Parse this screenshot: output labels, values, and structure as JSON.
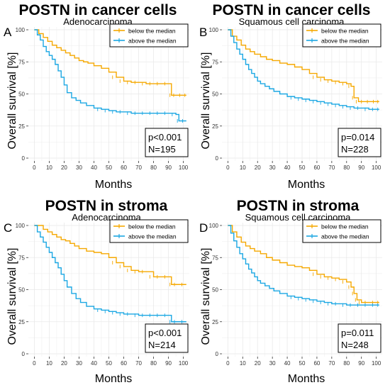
{
  "colors": {
    "below": "#f5a800",
    "above": "#1ba7e3",
    "grid": "#e9e9e9",
    "text": "#000000"
  },
  "legend_labels": [
    "below the median",
    "above the median"
  ],
  "chart_data": [
    {
      "panel_letter": "A",
      "type": "line",
      "title": "POSTN in cancer cells",
      "subtitle": "Adenocarcinoma",
      "xlabel": "Months",
      "ylabel": "Overall survival [%]",
      "xlim": [
        0,
        100
      ],
      "ylim": [
        0,
        100
      ],
      "xticks": [
        "0",
        "10",
        "20",
        "30",
        "40",
        "50",
        "60",
        "70",
        "80",
        "90",
        "100"
      ],
      "yticks": [
        "0",
        "25",
        "50",
        "75",
        "100"
      ],
      "grid": true,
      "legend_position": "top-right",
      "annotation": {
        "p": "p<0.001",
        "n": "N=195"
      },
      "series": [
        {
          "name": "below the median",
          "color_key": "below",
          "x": [
            0,
            3,
            6,
            9,
            12,
            15,
            18,
            21,
            24,
            27,
            30,
            33,
            36,
            40,
            45,
            50,
            55,
            60,
            65,
            70,
            75,
            80,
            85,
            90,
            92,
            95,
            100,
            102
          ],
          "y": [
            100,
            97,
            94,
            91,
            88,
            86,
            84,
            82,
            80,
            78,
            76,
            75,
            74,
            72,
            70,
            67,
            63,
            60,
            59,
            59,
            58,
            58,
            58,
            58,
            49,
            49,
            49,
            49
          ]
        },
        {
          "name": "above the median",
          "color_key": "above",
          "x": [
            0,
            2,
            4,
            6,
            8,
            10,
            12,
            14,
            16,
            18,
            20,
            22,
            25,
            28,
            31,
            35,
            40,
            45,
            50,
            55,
            60,
            65,
            70,
            75,
            80,
            85,
            90,
            95,
            97,
            102
          ],
          "y": [
            100,
            96,
            92,
            87,
            83,
            80,
            77,
            73,
            68,
            63,
            57,
            51,
            47,
            45,
            43,
            41,
            39,
            38,
            37,
            36,
            36,
            35,
            35,
            35,
            35,
            35,
            35,
            34,
            29,
            29
          ]
        }
      ]
    },
    {
      "panel_letter": "B",
      "type": "line",
      "title": "POSTN in cancer cells",
      "subtitle": "Squamous cell carcinoma",
      "xlabel": "Months",
      "ylabel": "Overall survival [%]",
      "xlim": [
        0,
        100
      ],
      "ylim": [
        0,
        100
      ],
      "xticks": [
        "0",
        "10",
        "20",
        "30",
        "40",
        "50",
        "60",
        "70",
        "80",
        "90",
        "100"
      ],
      "yticks": [
        "0",
        "25",
        "50",
        "75",
        "100"
      ],
      "grid": true,
      "legend_position": "top-right",
      "annotation": {
        "p": "p=0.014",
        "n": "N=228"
      },
      "series": [
        {
          "name": "below the median",
          "color_key": "below",
          "x": [
            0,
            3,
            6,
            9,
            12,
            15,
            18,
            22,
            26,
            30,
            35,
            40,
            45,
            50,
            55,
            60,
            65,
            70,
            75,
            80,
            83,
            85,
            88,
            92,
            96,
            100,
            102
          ],
          "y": [
            100,
            95,
            92,
            88,
            85,
            83,
            81,
            79,
            77,
            76,
            74,
            73,
            71,
            69,
            66,
            63,
            61,
            60,
            59,
            58,
            56,
            47,
            44,
            44,
            44,
            44,
            44
          ]
        },
        {
          "name": "above the median",
          "color_key": "above",
          "x": [
            0,
            2,
            4,
            6,
            8,
            10,
            12,
            14,
            16,
            18,
            20,
            22,
            25,
            28,
            31,
            35,
            40,
            45,
            50,
            55,
            60,
            65,
            70,
            75,
            80,
            85,
            90,
            95,
            100,
            102
          ],
          "y": [
            100,
            95,
            90,
            85,
            81,
            77,
            73,
            69,
            66,
            63,
            60,
            58,
            56,
            54,
            52,
            50,
            48,
            47,
            46,
            45,
            44,
            43,
            42,
            41,
            40,
            39,
            39,
            38,
            38,
            38
          ]
        }
      ]
    },
    {
      "panel_letter": "C",
      "type": "line",
      "title": "POSTN in stroma",
      "subtitle": "Adenocarcinoma",
      "xlabel": "Months",
      "ylabel": "Overall survival [%]",
      "xlim": [
        0,
        100
      ],
      "ylim": [
        0,
        100
      ],
      "xticks": [
        "0",
        "10",
        "20",
        "30",
        "40",
        "50",
        "60",
        "70",
        "80",
        "90",
        "100"
      ],
      "yticks": [
        "0",
        "25",
        "50",
        "75",
        "100"
      ],
      "grid": true,
      "legend_position": "top-right",
      "annotation": {
        "p": "p<0.001",
        "n": "N=214"
      },
      "series": [
        {
          "name": "below the median",
          "color_key": "below",
          "x": [
            0,
            3,
            6,
            9,
            12,
            15,
            18,
            21,
            24,
            27,
            30,
            35,
            40,
            45,
            50,
            55,
            60,
            65,
            70,
            75,
            80,
            85,
            90,
            92,
            96,
            102
          ],
          "y": [
            100,
            100,
            97,
            95,
            93,
            91,
            89,
            88,
            86,
            84,
            82,
            80,
            79,
            78,
            75,
            71,
            68,
            65,
            64,
            64,
            60,
            60,
            60,
            54,
            54,
            54
          ]
        },
        {
          "name": "above the median",
          "color_key": "above",
          "x": [
            0,
            2,
            4,
            6,
            8,
            10,
            12,
            14,
            16,
            18,
            20,
            22,
            25,
            28,
            31,
            35,
            40,
            45,
            50,
            55,
            60,
            65,
            70,
            75,
            80,
            85,
            90,
            92,
            96,
            102
          ],
          "y": [
            100,
            95,
            91,
            87,
            83,
            79,
            75,
            71,
            67,
            62,
            57,
            52,
            47,
            43,
            40,
            37,
            35,
            34,
            33,
            32,
            31,
            31,
            30,
            30,
            30,
            30,
            30,
            25,
            25,
            25
          ]
        }
      ]
    },
    {
      "panel_letter": "D",
      "type": "line",
      "title": "POSTN in stroma",
      "subtitle": "Squamous cell carcinoma",
      "xlabel": "Months",
      "ylabel": "Overall survival [%]",
      "xlim": [
        0,
        100
      ],
      "ylim": [
        0,
        100
      ],
      "xticks": [
        "0",
        "10",
        "20",
        "30",
        "40",
        "50",
        "60",
        "70",
        "80",
        "90",
        "100"
      ],
      "yticks": [
        "0",
        "25",
        "50",
        "75",
        "100"
      ],
      "grid": true,
      "legend_position": "top-right",
      "annotation": {
        "p": "p=0.011",
        "n": "N=248"
      },
      "series": [
        {
          "name": "below the median",
          "color_key": "below",
          "x": [
            0,
            3,
            6,
            9,
            12,
            15,
            18,
            22,
            26,
            30,
            35,
            40,
            45,
            50,
            55,
            60,
            65,
            70,
            75,
            80,
            83,
            85,
            87,
            90,
            95,
            100,
            102
          ],
          "y": [
            100,
            95,
            91,
            87,
            84,
            82,
            80,
            78,
            75,
            73,
            71,
            69,
            68,
            67,
            65,
            62,
            60,
            59,
            58,
            56,
            52,
            47,
            42,
            40,
            40,
            40,
            40
          ]
        },
        {
          "name": "above the median",
          "color_key": "above",
          "x": [
            0,
            2,
            4,
            6,
            8,
            10,
            12,
            14,
            16,
            18,
            20,
            22,
            25,
            28,
            31,
            35,
            40,
            45,
            50,
            55,
            60,
            65,
            70,
            75,
            80,
            85,
            90,
            95,
            100,
            102
          ],
          "y": [
            100,
            94,
            88,
            83,
            78,
            74,
            70,
            66,
            63,
            60,
            57,
            55,
            53,
            51,
            49,
            47,
            45,
            44,
            43,
            42,
            41,
            40,
            39,
            39,
            38,
            38,
            38,
            38,
            38,
            38
          ]
        }
      ]
    }
  ]
}
